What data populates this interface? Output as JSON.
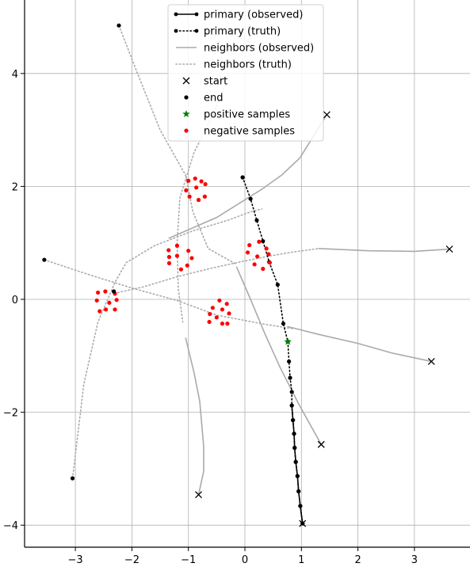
{
  "chart_data": {
    "type": "line",
    "title": "",
    "xlabel": "",
    "ylabel": "",
    "xlim": [
      -3.9,
      3.95
    ],
    "ylim": [
      -4.45,
      5.4
    ],
    "grid": true,
    "legend_position": "top-center",
    "xticks": [
      -3,
      -2,
      -1,
      0,
      1,
      2,
      3
    ],
    "yticks": [
      -4,
      -2,
      0,
      2,
      4
    ],
    "xtick_labels": [
      "−3",
      "−2",
      "−1",
      "0",
      "1",
      "2",
      "3"
    ],
    "ytick_labels": [
      "−4",
      "−2",
      "0",
      "2",
      "4"
    ],
    "legend": [
      {
        "label": "primary (observed)",
        "style": "primary-observed"
      },
      {
        "label": "primary (truth)",
        "style": "primary-truth"
      },
      {
        "label": "neighbors (observed)",
        "style": "neighbors-observed"
      },
      {
        "label": "neighbors (truth)",
        "style": "neighbors-truth"
      },
      {
        "label": "start",
        "style": "start"
      },
      {
        "label": "end",
        "style": "end"
      },
      {
        "label": "positive samples",
        "style": "positive"
      },
      {
        "label": "negative samples",
        "style": "negative"
      }
    ],
    "colors": {
      "primary": "#000000",
      "neighbors": "#aaaaaa",
      "positive": "#008000",
      "negative": "#ff0000",
      "grid": "#b0b0b0"
    },
    "primary_truth": [
      [
        -0.04,
        2.16
      ],
      [
        0.1,
        1.78
      ],
      [
        0.21,
        1.4
      ],
      [
        0.32,
        1.03
      ],
      [
        0.43,
        0.66
      ],
      [
        0.58,
        0.26
      ],
      [
        0.68,
        -0.43
      ],
      [
        0.76,
        -0.75
      ],
      [
        0.78,
        -1.1
      ],
      [
        0.8,
        -1.39
      ],
      [
        0.83,
        -1.64
      ],
      [
        0.83,
        -1.88
      ],
      [
        0.85,
        -2.14
      ],
      [
        0.87,
        -2.38
      ],
      [
        0.88,
        -2.63
      ],
      [
        0.9,
        -2.88
      ],
      [
        0.93,
        -3.13
      ],
      [
        0.95,
        -3.4
      ],
      [
        0.98,
        -3.66
      ],
      [
        1.02,
        -3.97
      ]
    ],
    "primary_observed": [
      [
        0.83,
        -1.88
      ],
      [
        0.85,
        -2.14
      ],
      [
        0.87,
        -2.38
      ],
      [
        0.88,
        -2.63
      ],
      [
        0.9,
        -2.88
      ],
      [
        0.93,
        -3.13
      ],
      [
        0.95,
        -3.4
      ],
      [
        0.98,
        -3.66
      ],
      [
        1.02,
        -3.97
      ]
    ],
    "neighbors_truth": [
      [
        [
          -2.23,
          4.85
        ],
        [
          -1.9,
          4.0
        ],
        [
          -1.5,
          3.0
        ],
        [
          -1.05,
          2.2
        ],
        [
          -0.92,
          1.55
        ],
        [
          -0.65,
          0.9
        ],
        [
          -0.15,
          0.62
        ]
      ],
      [
        [
          -3.55,
          0.7
        ],
        [
          -2.8,
          0.45
        ],
        [
          -2.0,
          0.2
        ],
        [
          -1.2,
          -0.02
        ],
        [
          -0.5,
          -0.28
        ],
        [
          0.4,
          -0.45
        ],
        [
          0.85,
          -0.52
        ]
      ],
      [
        [
          -3.05,
          -3.17
        ],
        [
          -2.85,
          -1.5
        ],
        [
          -2.6,
          -0.4
        ],
        [
          -2.3,
          0.3
        ],
        [
          -2.1,
          0.65
        ],
        [
          -1.6,
          0.95
        ],
        [
          -0.9,
          1.22
        ],
        [
          -0.3,
          1.4
        ],
        [
          0.1,
          1.55
        ],
        [
          0.3,
          1.6
        ]
      ],
      [
        [
          -2.25,
          0.12
        ],
        [
          -1.8,
          0.22
        ],
        [
          -1.2,
          0.4
        ],
        [
          -0.6,
          0.55
        ],
        [
          0.0,
          0.68
        ],
        [
          0.4,
          0.76
        ],
        [
          0.8,
          0.83
        ],
        [
          1.3,
          0.9
        ]
      ],
      [
        [
          -0.35,
          3.8
        ],
        [
          -0.55,
          3.3
        ],
        [
          -0.9,
          2.6
        ],
        [
          -1.15,
          1.8
        ],
        [
          -1.2,
          1.0
        ],
        [
          -1.18,
          0.2
        ],
        [
          -1.1,
          -0.4
        ]
      ]
    ],
    "neighbors_observed": [
      [
        [
          -1.35,
          1.08
        ],
        [
          -0.5,
          1.45
        ],
        [
          0.3,
          1.95
        ],
        [
          0.65,
          2.2
        ],
        [
          0.97,
          2.5
        ],
        [
          1.45,
          3.27
        ]
      ],
      [
        [
          1.3,
          0.9
        ],
        [
          2.2,
          0.86
        ],
        [
          3.0,
          0.85
        ],
        [
          3.62,
          0.89
        ]
      ],
      [
        [
          0.75,
          -0.48
        ],
        [
          1.3,
          -0.62
        ],
        [
          2.0,
          -0.78
        ],
        [
          2.6,
          -0.95
        ],
        [
          3.3,
          -1.1
        ]
      ],
      [
        [
          -0.15,
          0.58
        ],
        [
          0.1,
          0.0
        ],
        [
          0.35,
          -0.6
        ],
        [
          0.62,
          -1.2
        ],
        [
          0.95,
          -1.85
        ],
        [
          1.35,
          -2.57
        ]
      ],
      [
        [
          -1.05,
          -0.68
        ],
        [
          -0.9,
          -1.3
        ],
        [
          -0.8,
          -1.8
        ],
        [
          -0.73,
          -2.6
        ],
        [
          -0.73,
          -3.05
        ],
        [
          -0.82,
          -3.46
        ]
      ]
    ],
    "start_points": [
      [
        1.45,
        3.27
      ],
      [
        3.62,
        0.89
      ],
      [
        3.3,
        -1.1
      ],
      [
        1.35,
        -2.57
      ],
      [
        -0.82,
        -3.46
      ],
      [
        1.02,
        -3.97
      ]
    ],
    "end_points": [
      [
        -2.23,
        4.85
      ],
      [
        -3.55,
        0.7
      ],
      [
        -3.05,
        -3.17
      ],
      [
        -2.32,
        0.14
      ],
      [
        -0.04,
        2.16
      ]
    ],
    "positive_samples": [
      [
        0.76,
        -0.75
      ]
    ],
    "negative_samples": [
      [
        -1.0,
        2.1
      ],
      [
        -0.88,
        2.14
      ],
      [
        -0.77,
        2.09
      ],
      [
        -0.7,
        2.04
      ],
      [
        -1.04,
        1.93
      ],
      [
        -0.86,
        1.98
      ],
      [
        -0.71,
        1.82
      ],
      [
        -0.98,
        1.82
      ],
      [
        -0.82,
        1.76
      ],
      [
        -1.35,
        0.87
      ],
      [
        -1.2,
        0.95
      ],
      [
        -1.0,
        0.86
      ],
      [
        -1.34,
        0.75
      ],
      [
        -1.2,
        0.77
      ],
      [
        -0.94,
        0.73
      ],
      [
        -1.34,
        0.64
      ],
      [
        -1.02,
        0.6
      ],
      [
        -1.13,
        0.53
      ],
      [
        0.08,
        0.96
      ],
      [
        0.25,
        1.02
      ],
      [
        0.38,
        0.9
      ],
      [
        0.05,
        0.83
      ],
      [
        0.22,
        0.76
      ],
      [
        0.42,
        0.8
      ],
      [
        0.17,
        0.62
      ],
      [
        0.44,
        0.65
      ],
      [
        0.32,
        0.54
      ],
      [
        -2.6,
        0.12
      ],
      [
        -2.47,
        0.14
      ],
      [
        -2.3,
        0.1
      ],
      [
        -2.62,
        -0.02
      ],
      [
        -2.4,
        -0.06
      ],
      [
        -2.27,
        -0.01
      ],
      [
        -2.57,
        -0.21
      ],
      [
        -2.46,
        -0.18
      ],
      [
        -2.3,
        -0.18
      ],
      [
        -0.45,
        -0.02
      ],
      [
        -0.32,
        -0.08
      ],
      [
        -0.57,
        -0.15
      ],
      [
        -0.4,
        -0.18
      ],
      [
        -0.62,
        -0.26
      ],
      [
        -0.28,
        -0.25
      ],
      [
        -0.5,
        -0.32
      ],
      [
        -0.63,
        -0.4
      ],
      [
        -0.4,
        -0.43
      ],
      [
        -0.31,
        -0.43
      ]
    ]
  }
}
